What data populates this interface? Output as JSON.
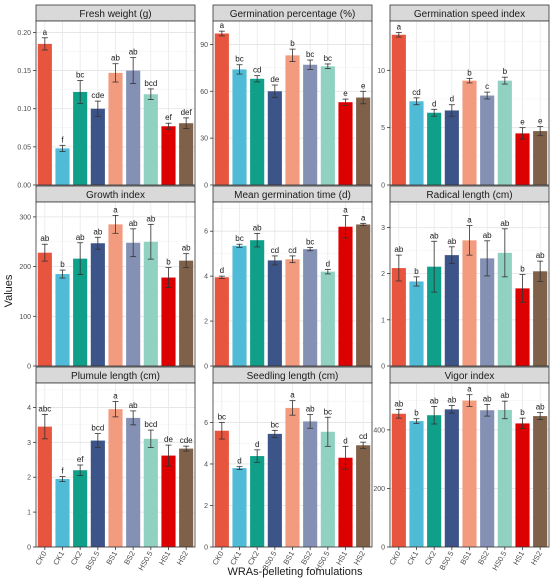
{
  "figure": {
    "ylabel": "Values",
    "xlabel": "WRAs-pelleting fomulations",
    "categories": [
      "CK0",
      "CK1",
      "CK2",
      "BS0.5",
      "BS1",
      "BS2",
      "HS0.5",
      "HS1",
      "HS2"
    ],
    "colors": [
      "#e8553f",
      "#4fbbd7",
      "#10a08a",
      "#3c5488",
      "#f39b7f",
      "#8491b4",
      "#91d1c2",
      "#dc0000",
      "#7e6148"
    ]
  },
  "chart_data": [
    {
      "type": "bar",
      "title": "Fresh weight (g)",
      "categories": [
        "CK0",
        "CK1",
        "CK2",
        "BS0.5",
        "BS1",
        "BS2",
        "HS0.5",
        "HS1",
        "HS2"
      ],
      "values": [
        0.185,
        0.048,
        0.122,
        0.1,
        0.147,
        0.15,
        0.119,
        0.077,
        0.081
      ],
      "errors": [
        0.008,
        0.004,
        0.015,
        0.01,
        0.012,
        0.017,
        0.007,
        0.004,
        0.007
      ],
      "letters": [
        "a",
        "f",
        "bc",
        "cde",
        "ab",
        "ab",
        "bcd",
        "ef",
        "def"
      ],
      "ylim": [
        0,
        0.215
      ],
      "ticks": [
        0.0,
        0.05,
        0.1,
        0.15,
        0.2
      ],
      "tick_labels": [
        "0.00",
        "0.05",
        "0.10",
        "0.15",
        "0.20"
      ]
    },
    {
      "type": "bar",
      "title": "Germination percentage (%)",
      "categories": [
        "CK0",
        "CK1",
        "CK2",
        "BS0.5",
        "BS1",
        "BS2",
        "HS0.5",
        "HS1",
        "HS2"
      ],
      "values": [
        97,
        74,
        68,
        60,
        83,
        77,
        76,
        53,
        56
      ],
      "errors": [
        1.5,
        3,
        2,
        4,
        4,
        3,
        1.5,
        2,
        4
      ],
      "letters": [
        "a",
        "bc",
        "cd",
        "de",
        "b",
        "bc",
        "bc",
        "e",
        "e"
      ],
      "ylim": [
        0,
        105
      ],
      "ticks": [
        0,
        30,
        60,
        90
      ],
      "tick_labels": [
        "0",
        "30",
        "60",
        "90"
      ]
    },
    {
      "type": "bar",
      "title": "Germination speed index",
      "categories": [
        "CK0",
        "CK1",
        "CK2",
        "BS0.5",
        "BS1",
        "BS2",
        "HS0.5",
        "HS1",
        "HS2"
      ],
      "values": [
        13.1,
        7.3,
        6.3,
        6.5,
        9.1,
        7.8,
        9.1,
        4.5,
        4.7
      ],
      "errors": [
        0.2,
        0.3,
        0.3,
        0.5,
        0.2,
        0.3,
        0.3,
        0.5,
        0.4
      ],
      "letters": [
        "a",
        "cd",
        "d",
        "d",
        "b",
        "c",
        "b",
        "e",
        "e"
      ],
      "ylim": [
        0,
        14.3
      ],
      "ticks": [
        0,
        5,
        10
      ],
      "tick_labels": [
        "0",
        "5",
        "10"
      ]
    },
    {
      "type": "bar",
      "title": "Growth index",
      "categories": [
        "CK0",
        "CK1",
        "CK2",
        "BS0.5",
        "BS1",
        "BS2",
        "HS0.5",
        "HS1",
        "HS2"
      ],
      "values": [
        228,
        185,
        216,
        247,
        285,
        248,
        250,
        178,
        212
      ],
      "errors": [
        17,
        8,
        32,
        12,
        18,
        28,
        35,
        20,
        14
      ],
      "letters": [
        "ab",
        "b",
        "ab",
        "ab",
        "a",
        "ab",
        "ab",
        "b",
        "ab"
      ],
      "ylim": [
        0,
        330
      ],
      "ticks": [
        0,
        100,
        200,
        300
      ],
      "tick_labels": [
        "0",
        "100",
        "200",
        "300"
      ]
    },
    {
      "type": "bar",
      "title": "Mean germination time (d)",
      "categories": [
        "CK0",
        "CK1",
        "CK2",
        "BS0.5",
        "BS1",
        "BS2",
        "HS0.5",
        "HS1",
        "HS2"
      ],
      "values": [
        3.95,
        5.35,
        5.6,
        4.7,
        4.75,
        5.2,
        4.2,
        6.2,
        6.3
      ],
      "errors": [
        0.05,
        0.07,
        0.3,
        0.2,
        0.15,
        0.07,
        0.1,
        0.5,
        0.05
      ],
      "letters": [
        "d",
        "bc",
        "ab",
        "cd",
        "cd",
        "bc",
        "d",
        "a",
        "a"
      ],
      "ylim": [
        0,
        7.3
      ],
      "ticks": [
        0,
        2,
        4,
        6
      ],
      "tick_labels": [
        "0",
        "2",
        "4",
        "6"
      ]
    },
    {
      "type": "bar",
      "title": "Radical length (cm)",
      "categories": [
        "CK0",
        "CK1",
        "CK2",
        "BS0.5",
        "BS1",
        "BS2",
        "HS0.5",
        "HS1",
        "HS2"
      ],
      "values": [
        2.12,
        1.83,
        2.15,
        2.4,
        2.72,
        2.33,
        2.45,
        1.68,
        2.05
      ],
      "errors": [
        0.28,
        0.1,
        0.55,
        0.18,
        0.32,
        0.38,
        0.52,
        0.3,
        0.22
      ],
      "letters": [
        "ab",
        "b",
        "ab",
        "ab",
        "a",
        "ab",
        "ab",
        "b",
        "ab"
      ],
      "ylim": [
        0,
        3.55
      ],
      "ticks": [
        0,
        1,
        2,
        3
      ],
      "tick_labels": [
        "0",
        "1",
        "2",
        "3"
      ]
    },
    {
      "type": "bar",
      "title": "Plumule length (cm)",
      "categories": [
        "CK0",
        "CK1",
        "CK2",
        "BS0.5",
        "BS1",
        "BS2",
        "HS0.5",
        "HS1",
        "HS2"
      ],
      "values": [
        3.45,
        1.95,
        2.2,
        3.05,
        3.95,
        3.7,
        3.1,
        2.62,
        2.82
      ],
      "errors": [
        0.35,
        0.07,
        0.15,
        0.2,
        0.22,
        0.2,
        0.25,
        0.3,
        0.07
      ],
      "letters": [
        "abc",
        "f",
        "ef",
        "bcd",
        "a",
        "ab",
        "bcd",
        "de",
        "cde"
      ],
      "ylim": [
        0,
        4.7
      ],
      "ticks": [
        0,
        1,
        2,
        3,
        4
      ],
      "tick_labels": [
        "0",
        "1",
        "2",
        "3",
        "4"
      ]
    },
    {
      "type": "bar",
      "title": "Seedling length (cm)",
      "categories": [
        "CK0",
        "CK1",
        "CK2",
        "BS0.5",
        "BS1",
        "BS2",
        "HS0.5",
        "HS1",
        "HS2"
      ],
      "values": [
        5.6,
        3.8,
        4.38,
        5.45,
        6.7,
        6.05,
        5.55,
        4.3,
        4.9
      ],
      "errors": [
        0.4,
        0.07,
        0.3,
        0.17,
        0.35,
        0.33,
        0.7,
        0.55,
        0.15
      ],
      "letters": [
        "bc",
        "d",
        "d",
        "bc",
        "a",
        "ab",
        "bc",
        "d",
        "cd"
      ],
      "ylim": [
        0,
        7.9
      ],
      "ticks": [
        0,
        2,
        4,
        6
      ],
      "tick_labels": [
        "0",
        "2",
        "4",
        "6"
      ]
    },
    {
      "type": "bar",
      "title": "Vigor index",
      "categories": [
        "CK0",
        "CK1",
        "CK2",
        "BS0.5",
        "BS1",
        "BS2",
        "HS0.5",
        "HS1",
        "HS2"
      ],
      "values": [
        455,
        430,
        450,
        470,
        500,
        467,
        468,
        422,
        447
      ],
      "errors": [
        15,
        8,
        30,
        13,
        20,
        20,
        30,
        18,
        12
      ],
      "letters": [
        "ab",
        "b",
        "ab",
        "ab",
        "a",
        "ab",
        "ab",
        "b",
        "ab"
      ],
      "ylim": [
        0,
        560
      ],
      "ticks": [
        0,
        200,
        400
      ],
      "tick_labels": [
        "0",
        "200",
        "400"
      ]
    }
  ]
}
